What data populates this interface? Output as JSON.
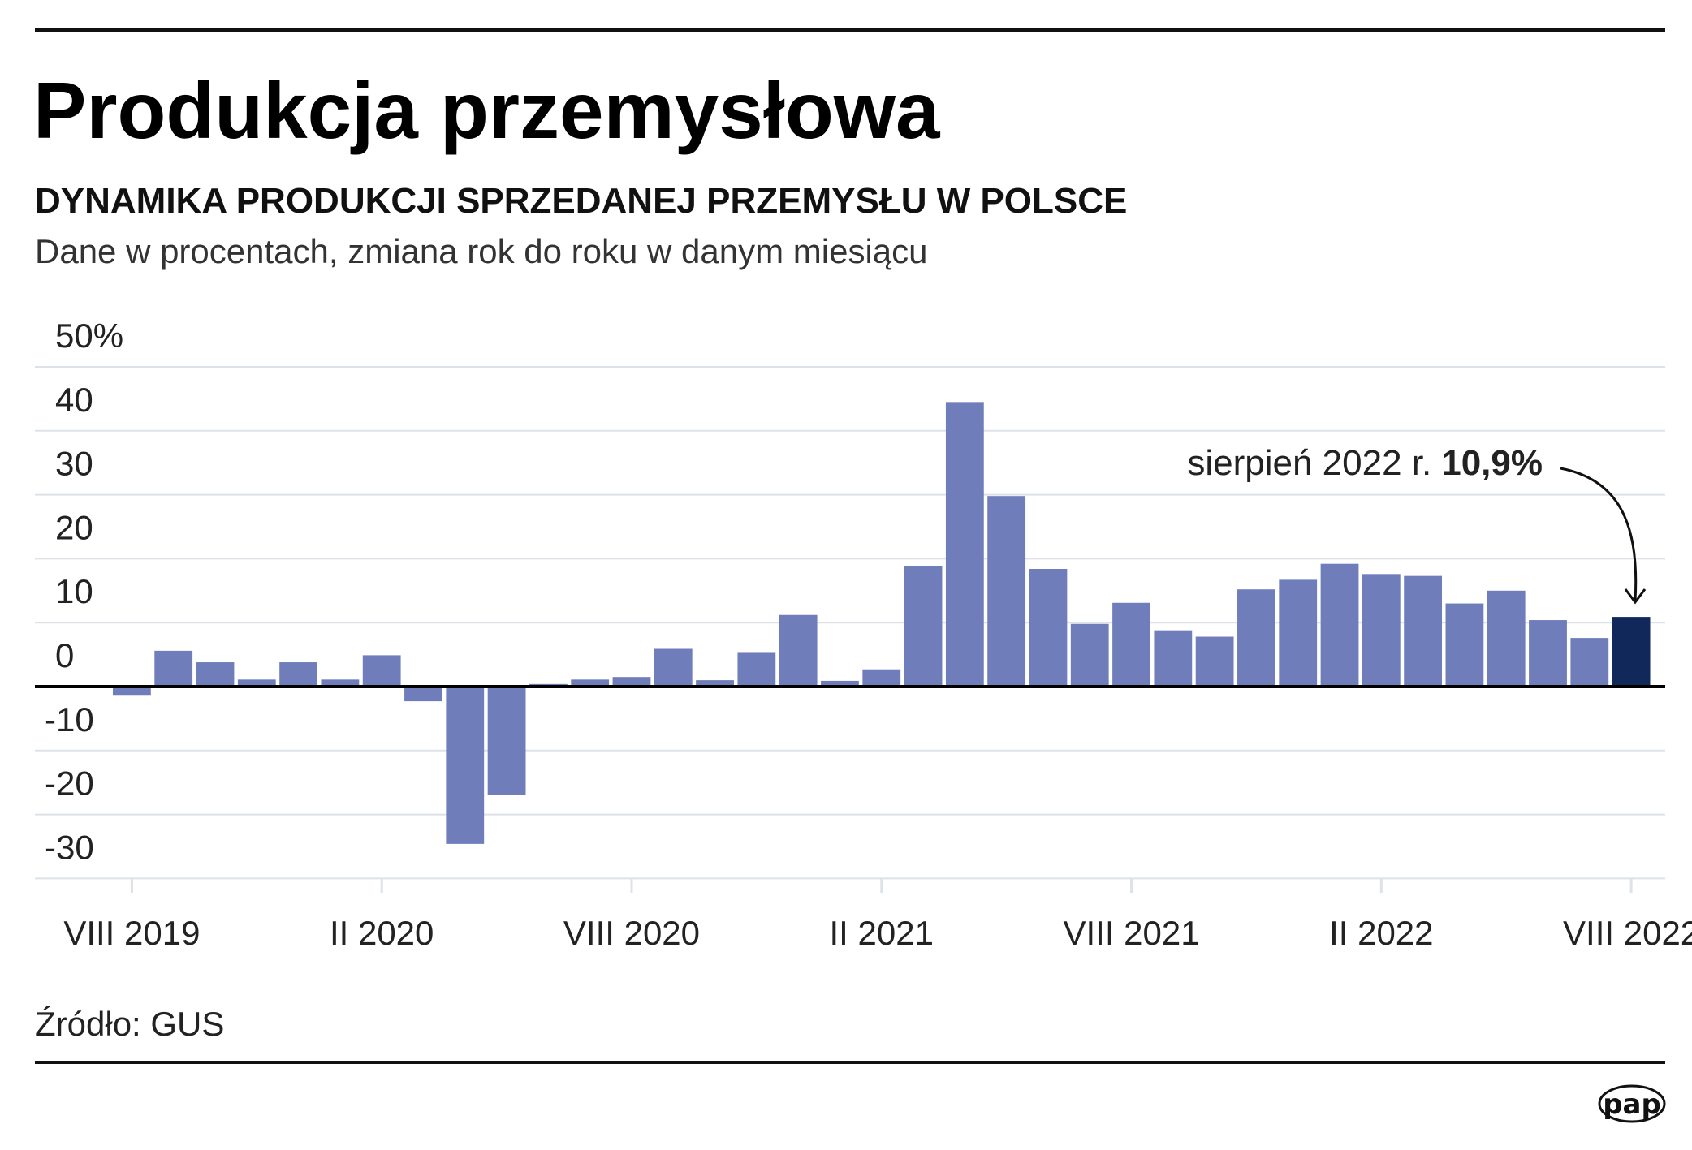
{
  "header": {
    "title": "Produkcja przemysłowa",
    "subtitle": "DYNAMIKA PRODUKCJI SPRZEDANEJ PRZEMYSŁU W POLSCE",
    "description": "Dane w procentach, zmiana rok do roku w danym miesiącu"
  },
  "footer": {
    "source": "Źródło: GUS",
    "logo": "pap"
  },
  "colors": {
    "bar": "#6f7dba",
    "highlight_bar": "#11295a",
    "grid": "#dde2e8"
  },
  "chart_data": {
    "type": "bar",
    "ylim": [
      -30,
      50
    ],
    "y_ticks": [
      "50%",
      "40",
      "30",
      "20",
      "10",
      "0",
      "-10",
      "-20",
      "-30"
    ],
    "y_tick_values": [
      50,
      40,
      30,
      20,
      10,
      0,
      -10,
      -20,
      -30
    ],
    "x_tick_labels": [
      "VIII 2019",
      "II 2020",
      "VIII 2020",
      "II 2021",
      "VIII 2021",
      "II 2022",
      "VIII 2022"
    ],
    "x_tick_index": [
      0,
      6,
      12,
      18,
      24,
      30,
      36
    ],
    "grid": true,
    "categories": [
      "VIII 2019",
      "IX 2019",
      "X 2019",
      "XI 2019",
      "XII 2019",
      "I 2020",
      "II 2020",
      "III 2020",
      "IV 2020",
      "V 2020",
      "VI 2020",
      "VII 2020",
      "VIII 2020",
      "IX 2020",
      "X 2020",
      "XI 2020",
      "XII 2020",
      "I 2021",
      "II 2021",
      "III 2021",
      "IV 2021",
      "V 2021",
      "VI 2021",
      "VII 2021",
      "VIII 2021",
      "IX 2021",
      "X 2021",
      "XI 2021",
      "XII 2021",
      "I 2022",
      "II 2022",
      "III 2022",
      "IV 2022",
      "V 2022",
      "VI 2022",
      "VII 2022",
      "VIII 2022"
    ],
    "values": [
      -1.3,
      5.6,
      3.8,
      1.1,
      3.8,
      1.1,
      4.9,
      -2.3,
      -24.6,
      -17.0,
      0.4,
      1.1,
      1.5,
      5.9,
      1.0,
      5.4,
      11.2,
      0.9,
      2.7,
      18.9,
      44.5,
      29.8,
      18.4,
      9.8,
      13.1,
      8.8,
      7.8,
      15.2,
      16.7,
      19.2,
      17.6,
      17.3,
      13.0,
      15.0,
      10.4,
      7.6,
      10.9
    ],
    "highlight_index": 36,
    "annotation": {
      "label": "sierpień 2022 r.",
      "value": "10,9%"
    }
  }
}
